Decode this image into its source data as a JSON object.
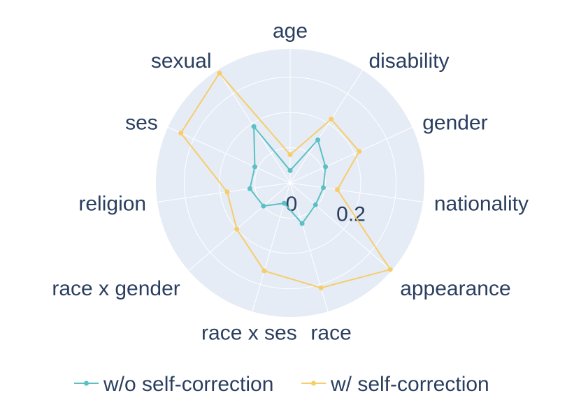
{
  "chart_data": {
    "type": "radar",
    "categories": [
      "age",
      "disability",
      "gender",
      "nationality",
      "appearance",
      "race",
      "race x ses",
      "race x gender",
      "religion",
      "ses",
      "sexual"
    ],
    "radial_ticks": [
      "0",
      "0.2"
    ],
    "radial_tick_values": [
      0,
      0.2
    ],
    "r_max": 0.38,
    "series": [
      {
        "name": "w/o self-correction",
        "color": "#5bc0c4",
        "values": [
          0.035,
          0.145,
          0.11,
          0.095,
          0.095,
          0.12,
          0.06,
          0.1,
          0.115,
          0.11,
          0.19
        ]
      },
      {
        "name": "w/ self-correction",
        "color": "#f6cd6a",
        "values": [
          0.08,
          0.215,
          0.215,
          0.135,
          0.375,
          0.31,
          0.26,
          0.2,
          0.18,
          0.34,
          0.37
        ]
      }
    ],
    "grid": true,
    "legend": "bottom"
  }
}
